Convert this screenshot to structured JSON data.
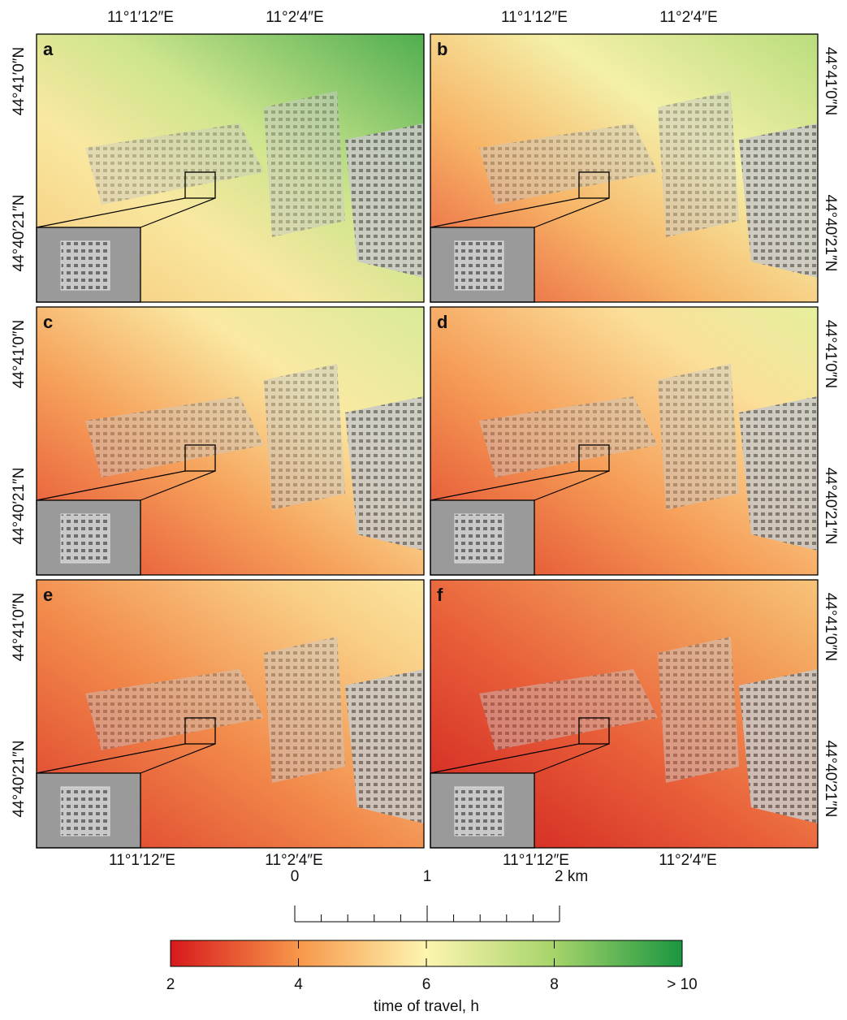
{
  "panels": [
    "a",
    "b",
    "c",
    "d",
    "e",
    "f"
  ],
  "map_labels": {
    "lon": [
      "11°1′12″E",
      "11°2′4″E"
    ],
    "lat": [
      "44°41′0″N",
      "44°40′21″N"
    ]
  },
  "scale_bar": {
    "lim": [
      0,
      2
    ],
    "ticks": [
      0,
      1,
      {
        "value": 2,
        "label": "2 km"
      }
    ],
    "minor_ticks": [
      0.2,
      0.4,
      0.6,
      0.8,
      1.2,
      1.4,
      1.6,
      1.8
    ]
  },
  "colorbar": {
    "title": "time of travel,  h",
    "lim": [
      2,
      10
    ],
    "ticks": [
      2,
      4,
      6,
      8,
      {
        "value": 10,
        "label": "> 10"
      }
    ]
  }
}
